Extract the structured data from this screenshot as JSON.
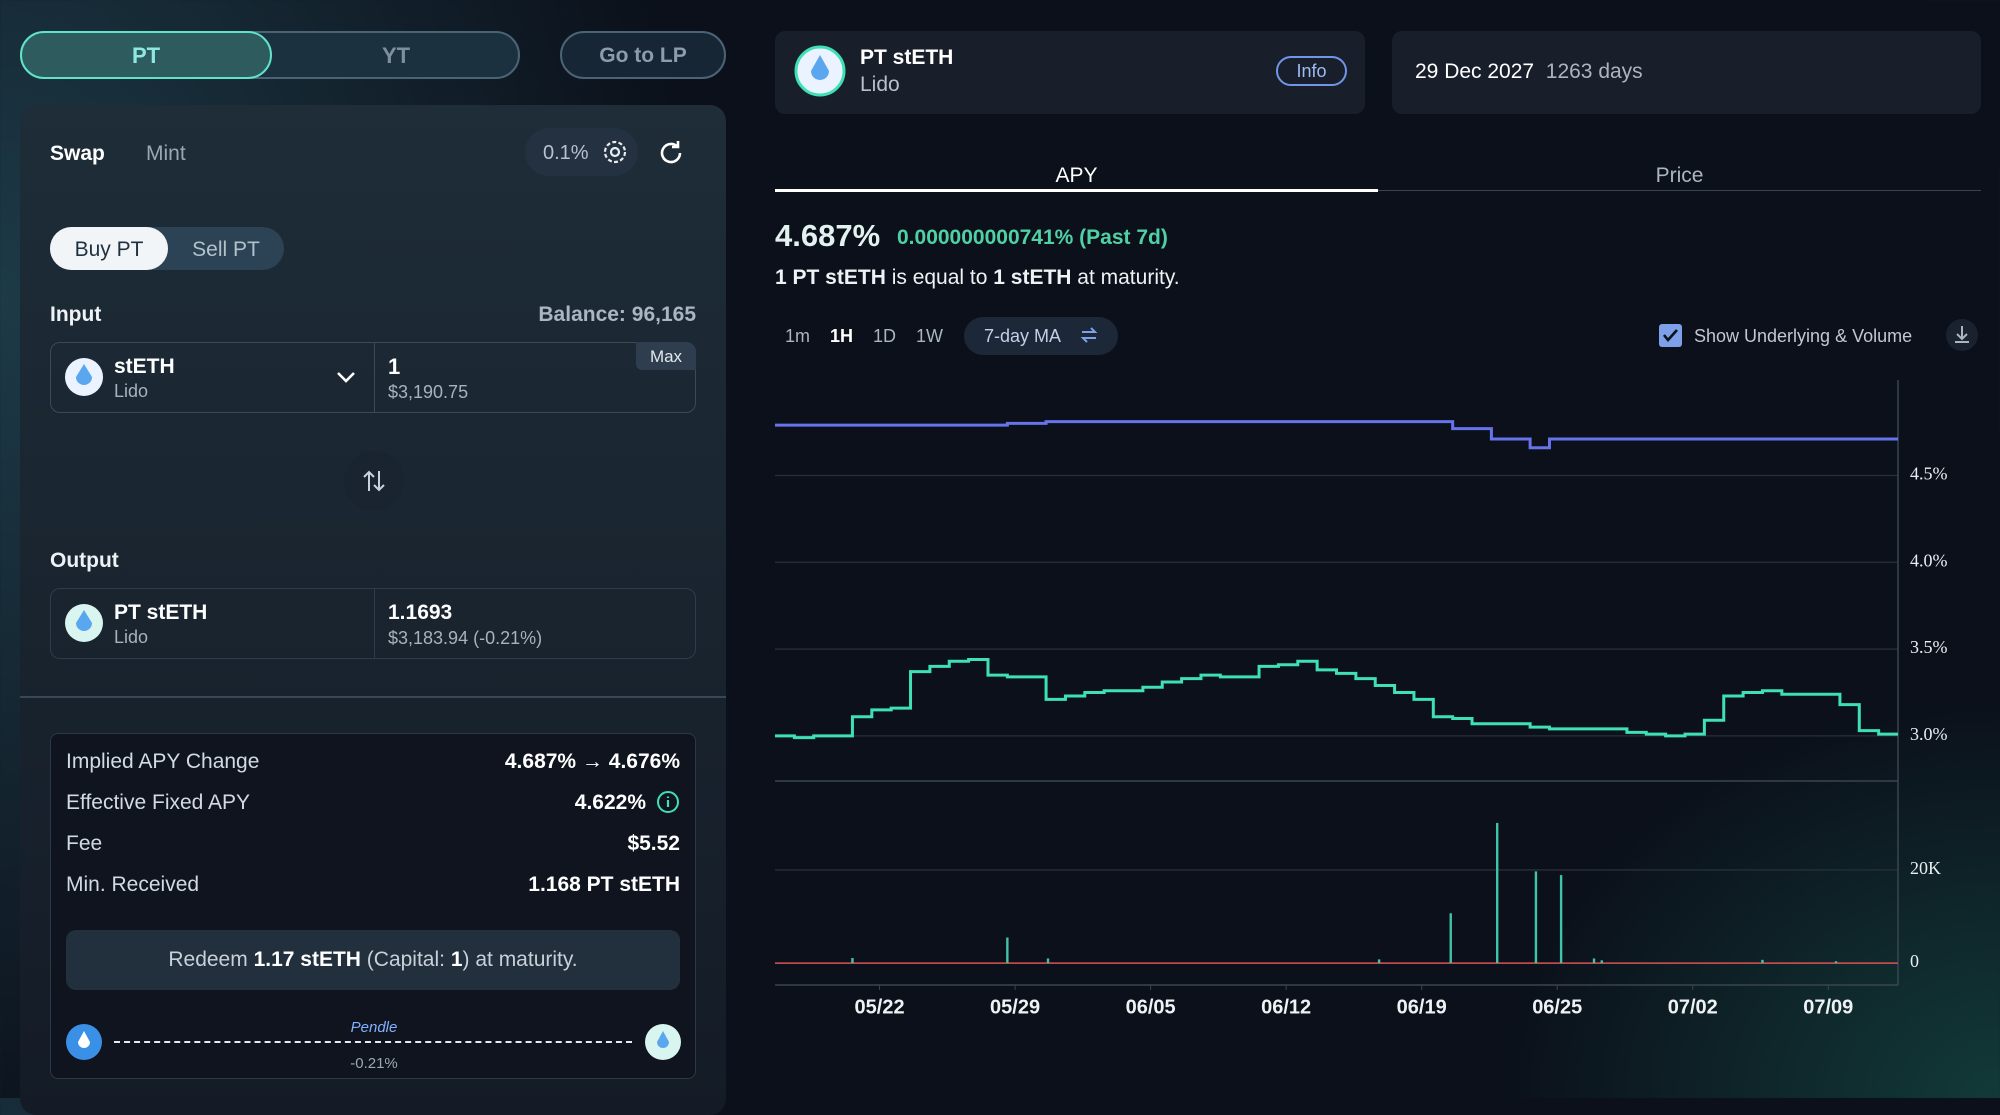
{
  "tabs": {
    "items": [
      "PT",
      "YT"
    ]
  },
  "go_to_lp": "Go to LP",
  "swap_panel": {
    "modes": [
      "Swap",
      "Mint"
    ],
    "slippage": "0.1%",
    "sides": [
      "Buy PT",
      "Sell PT"
    ],
    "input": {
      "label": "Input",
      "balance": "Balance: 96,165",
      "token": "stETH",
      "protocol": "Lido",
      "amount": "1",
      "usd": "$3,190.75",
      "max": "Max"
    },
    "output": {
      "label": "Output",
      "token": "PT stETH",
      "protocol": "Lido",
      "amount": "1.1693",
      "usd": "$3,183.94 (-0.21%)"
    },
    "details": [
      {
        "label": "Implied APY Change",
        "value": "4.687% → 4.676%"
      },
      {
        "label": "Effective Fixed APY",
        "value": "4.622%"
      },
      {
        "label": "Fee",
        "value": "$5.52"
      },
      {
        "label": "Min. Received",
        "value": "1.168 PT stETH"
      }
    ],
    "redeem": [
      "Redeem ",
      "1.17 stETH",
      " (Capital: ",
      "1",
      ") at maturity."
    ],
    "route": {
      "name": "Pendle",
      "impact": "-0.21%"
    }
  },
  "market": {
    "token": "PT stETH",
    "protocol": "Lido",
    "info": "Info",
    "maturity": "29 Dec 2027",
    "days": "1263 days"
  },
  "chart_tabs": [
    "APY",
    "Price"
  ],
  "apy": {
    "value": "4.687%",
    "change": "0.000000000741% (Past 7d)",
    "equal": [
      "1 PT stETH",
      " is equal to ",
      "1 stETH",
      " at maturity."
    ]
  },
  "timeframes": [
    "1m",
    "1H",
    "1D",
    "1W"
  ],
  "ma": "7-day MA",
  "show_underlying": "Show Underlying & Volume",
  "chart_data": {
    "type": "step",
    "xlim": [
      0,
      58
    ],
    "xticks": [
      {
        "value": 5.4,
        "label": "05/22"
      },
      {
        "value": 12.4,
        "label": "05/29"
      },
      {
        "value": 19.4,
        "label": "06/05"
      },
      {
        "value": 26.4,
        "label": "06/12"
      },
      {
        "value": 33.4,
        "label": "06/19"
      },
      {
        "value": 40.4,
        "label": "06/25"
      },
      {
        "value": 47.4,
        "label": "07/02"
      },
      {
        "value": 54.4,
        "label": "07/09"
      }
    ],
    "ylim": [
      2.74,
      5.05
    ],
    "yticks": [
      {
        "value": 3.0,
        "label": "3.0%"
      },
      {
        "value": 3.5,
        "label": "3.5%"
      },
      {
        "value": 4.0,
        "label": "4.0%"
      },
      {
        "value": 4.5,
        "label": "4.5%"
      }
    ],
    "grid": true,
    "series": [
      {
        "color": "#6673ea",
        "values": [
          4.79,
          4.79,
          4.79,
          4.79,
          4.79,
          4.79,
          4.79,
          4.79,
          4.79,
          4.79,
          4.79,
          4.79,
          4.8,
          4.8,
          4.81,
          4.81,
          4.81,
          4.81,
          4.81,
          4.81,
          4.81,
          4.81,
          4.81,
          4.81,
          4.81,
          4.81,
          4.81,
          4.81,
          4.81,
          4.81,
          4.81,
          4.81,
          4.81,
          4.81,
          4.81,
          4.77,
          4.77,
          4.71,
          4.71,
          4.66,
          4.71,
          4.71,
          4.71,
          4.71,
          4.71,
          4.71,
          4.71,
          4.71,
          4.71,
          4.71,
          4.71,
          4.71,
          4.71,
          4.71,
          4.71,
          4.71,
          4.71,
          4.71
        ]
      },
      {
        "color": "#3ee0b4",
        "values": [
          3.0,
          2.99,
          3.0,
          3.0,
          3.11,
          3.15,
          3.16,
          3.37,
          3.4,
          3.43,
          3.44,
          3.35,
          3.34,
          3.34,
          3.21,
          3.23,
          3.25,
          3.26,
          3.26,
          3.28,
          3.31,
          3.33,
          3.35,
          3.34,
          3.34,
          3.4,
          3.41,
          3.43,
          3.38,
          3.36,
          3.33,
          3.29,
          3.25,
          3.21,
          3.11,
          3.1,
          3.07,
          3.07,
          3.07,
          3.05,
          3.04,
          3.04,
          3.04,
          3.04,
          3.02,
          3.01,
          3.0,
          3.01,
          3.09,
          3.23,
          3.25,
          3.26,
          3.24,
          3.24,
          3.24,
          3.18,
          3.03,
          3.01
        ]
      }
    ],
    "volume": {
      "type": "bar",
      "color": "#3fc3aa",
      "baseline_color": "#d9534f",
      "x": [
        4.0,
        12.0,
        14.1,
        31.2,
        34.9,
        37.3,
        39.3,
        40.6,
        42.3,
        42.7,
        51.0,
        54.8
      ],
      "values": [
        1100,
        5500,
        1000,
        800,
        10700,
        30100,
        19700,
        18900,
        1000,
        600,
        700,
        400
      ],
      "ylim": [
        -4700,
        39100
      ],
      "yticks": [
        0,
        {
          "value": 20000,
          "label": "20K"
        }
      ]
    }
  }
}
